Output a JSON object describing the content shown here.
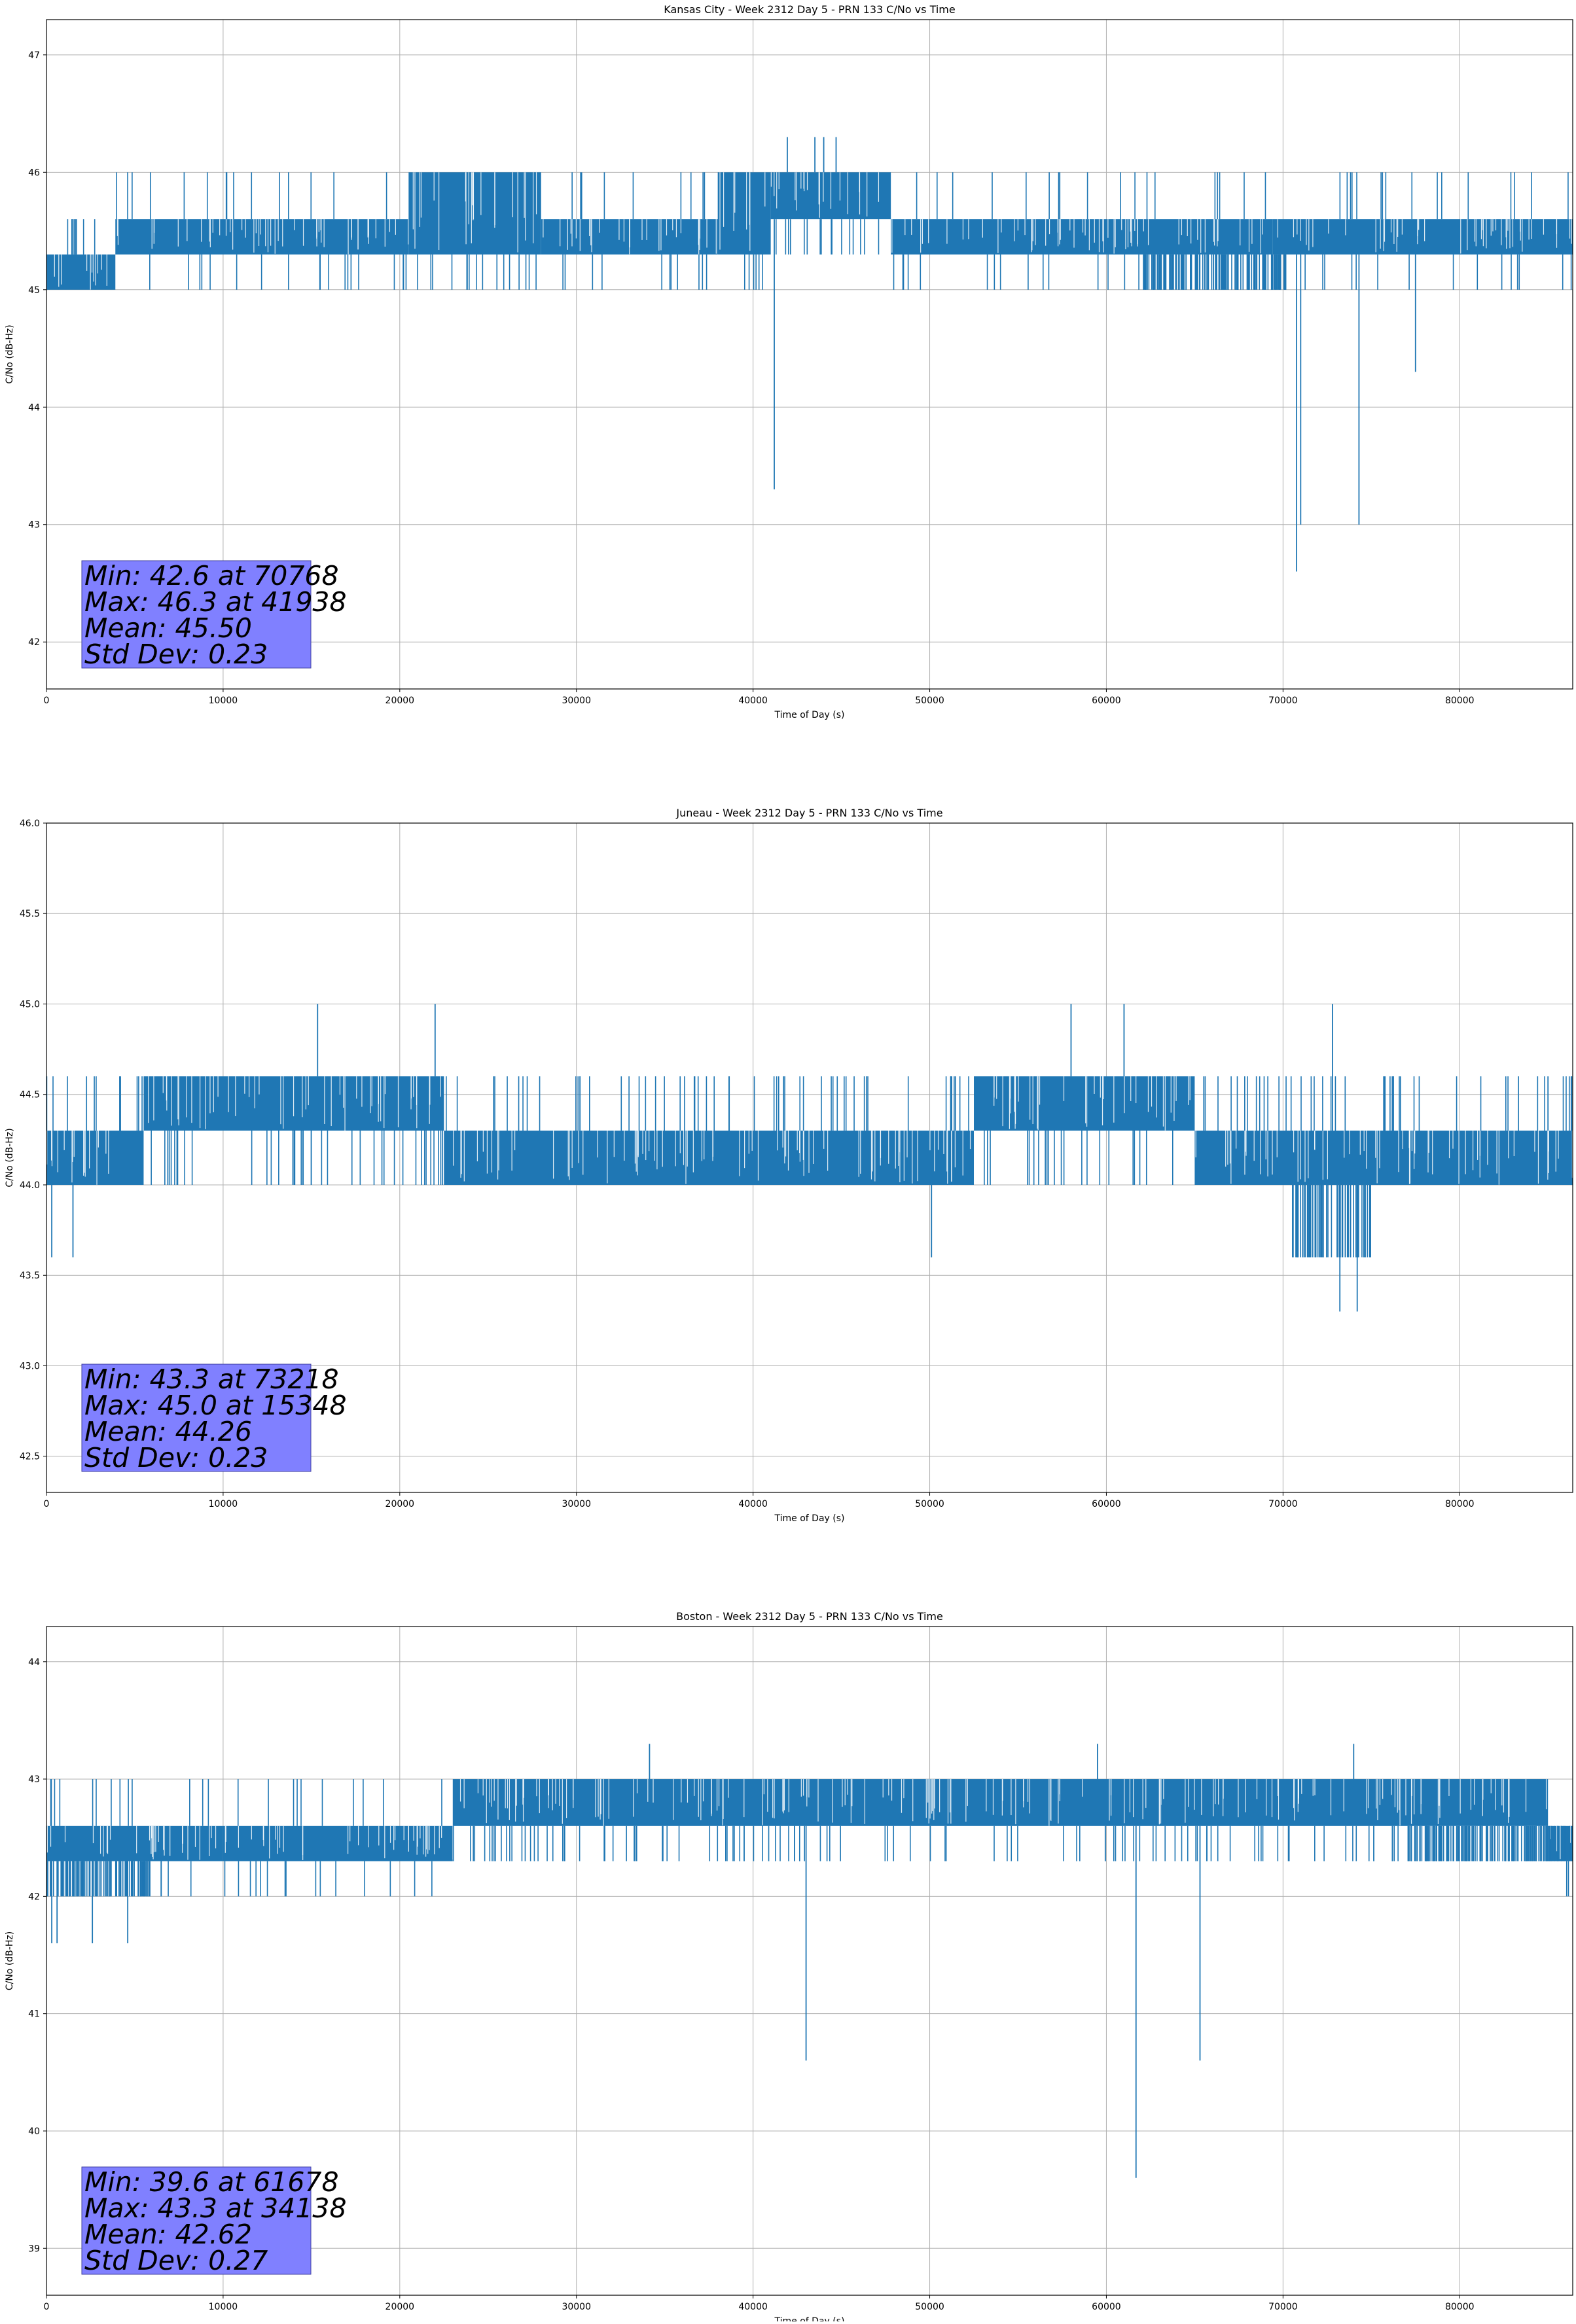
{
  "chart_data": [
    {
      "type": "line",
      "title": "Kansas City - Week 2312 Day 5 - PRN 133 C/No vs Time",
      "xlabel": "Time of Day (s)",
      "ylabel": "C/No (dB-Hz)",
      "xlim": [
        0,
        86400
      ],
      "ylim": [
        41.6,
        47.3
      ],
      "xticks": [
        0,
        10000,
        20000,
        30000,
        40000,
        50000,
        60000,
        70000,
        80000
      ],
      "yticks": [
        42,
        43,
        44,
        45,
        46,
        47
      ],
      "grid": true,
      "color": "#1f77b4",
      "levels": [
        45.0,
        45.3,
        45.6,
        46.0
      ],
      "segments": [
        {
          "x0": 0,
          "x1": 3900,
          "lo": 45.0,
          "hi": 45.3
        },
        {
          "x0": 3900,
          "x1": 20500,
          "lo": 45.3,
          "hi": 45.6
        },
        {
          "x0": 20500,
          "x1": 28000,
          "lo": 45.3,
          "hi": 46.0
        },
        {
          "x0": 28000,
          "x1": 38000,
          "lo": 45.3,
          "hi": 45.6
        },
        {
          "x0": 38000,
          "x1": 41000,
          "lo": 45.3,
          "hi": 46.0
        },
        {
          "x0": 41000,
          "x1": 47800,
          "lo": 45.6,
          "hi": 46.0
        },
        {
          "x0": 47800,
          "x1": 69400,
          "lo": 45.3,
          "hi": 45.6
        },
        {
          "x0": 69400,
          "x1": 86400,
          "lo": 45.3,
          "hi": 45.6
        }
      ],
      "bands": [
        {
          "x0": 62000,
          "x1": 70300,
          "lo": 45.0,
          "hi": 45.3
        }
      ],
      "spikes": [
        {
          "x": 41200,
          "y": 43.3
        },
        {
          "x": 41938,
          "y": 46.3
        },
        {
          "x": 43500,
          "y": 46.3
        },
        {
          "x": 44000,
          "y": 46.3
        },
        {
          "x": 44700,
          "y": 46.3
        },
        {
          "x": 70768,
          "y": 42.6
        },
        {
          "x": 71000,
          "y": 43.0
        },
        {
          "x": 74300,
          "y": 43.0
        },
        {
          "x": 77500,
          "y": 44.3
        }
      ],
      "stats": [
        "Min: 42.6 at 70768",
        "Max: 46.3 at 41938",
        "Mean: 45.50",
        "Std Dev: 0.23"
      ]
    },
    {
      "type": "line",
      "title": "Juneau - Week 2312 Day 5 - PRN 133 C/No vs Time",
      "xlabel": "Time of Day (s)",
      "ylabel": "C/No (dB-Hz)",
      "xlim": [
        0,
        86400
      ],
      "ylim": [
        42.3,
        46.0
      ],
      "xticks": [
        0,
        10000,
        20000,
        30000,
        40000,
        50000,
        60000,
        70000,
        80000
      ],
      "yticks": [
        42.5,
        43.0,
        43.5,
        44.0,
        44.5,
        45.0,
        45.5,
        46.0
      ],
      "grid": true,
      "color": "#1f77b4",
      "levels": [
        44.0,
        44.3,
        44.6
      ],
      "segments": [
        {
          "x0": 0,
          "x1": 5500,
          "lo": 44.0,
          "hi": 44.3
        },
        {
          "x0": 5500,
          "x1": 22500,
          "lo": 44.3,
          "hi": 44.6
        },
        {
          "x0": 22500,
          "x1": 52500,
          "lo": 44.0,
          "hi": 44.3
        },
        {
          "x0": 52500,
          "x1": 65000,
          "lo": 44.3,
          "hi": 44.6
        },
        {
          "x0": 65000,
          "x1": 86400,
          "lo": 44.0,
          "hi": 44.3
        }
      ],
      "bands": [
        {
          "x0": 70500,
          "x1": 75000,
          "lo": 43.6,
          "hi": 44.0
        }
      ],
      "spikes": [
        {
          "x": 300,
          "y": 43.6
        },
        {
          "x": 1500,
          "y": 43.6
        },
        {
          "x": 15348,
          "y": 45.0
        },
        {
          "x": 22000,
          "y": 45.0
        },
        {
          "x": 50100,
          "y": 43.6
        },
        {
          "x": 58000,
          "y": 45.0
        },
        {
          "x": 61000,
          "y": 45.0
        },
        {
          "x": 72800,
          "y": 45.0
        },
        {
          "x": 73218,
          "y": 43.3
        },
        {
          "x": 74200,
          "y": 43.3
        },
        {
          "x": 85000,
          "y": 44.6
        }
      ],
      "stats": [
        "Min: 43.3 at 73218",
        "Max: 45.0 at 15348",
        "Mean: 44.26",
        "Std Dev: 0.23"
      ]
    },
    {
      "type": "line",
      "title": "Boston - Week 2312 Day 5 - PRN 133 C/No vs Time",
      "xlabel": "Time of Day (s)",
      "ylabel": "C/No (dB-Hz)",
      "xlim": [
        0,
        86400
      ],
      "ylim": [
        38.6,
        44.3
      ],
      "xticks": [
        0,
        10000,
        20000,
        30000,
        40000,
        50000,
        60000,
        70000,
        80000
      ],
      "yticks": [
        39,
        40,
        41,
        42,
        43,
        44
      ],
      "grid": true,
      "color": "#1f77b4",
      "levels": [
        42.0,
        42.3,
        42.6,
        43.0
      ],
      "segments": [
        {
          "x0": 0,
          "x1": 10000,
          "lo": 42.3,
          "hi": 42.6
        },
        {
          "x0": 10000,
          "x1": 23000,
          "lo": 42.3,
          "hi": 42.6
        },
        {
          "x0": 23000,
          "x1": 85000,
          "lo": 42.6,
          "hi": 43.0
        },
        {
          "x0": 85000,
          "x1": 86400,
          "lo": 42.3,
          "hi": 42.6
        }
      ],
      "bands": [
        {
          "x0": 0,
          "x1": 6000,
          "lo": 42.0,
          "hi": 42.3
        },
        {
          "x0": 77000,
          "x1": 86400,
          "lo": 42.3,
          "hi": 42.6
        }
      ],
      "spikes": [
        {
          "x": 300,
          "y": 41.6
        },
        {
          "x": 600,
          "y": 41.6
        },
        {
          "x": 2600,
          "y": 41.6
        },
        {
          "x": 4600,
          "y": 41.6
        },
        {
          "x": 34138,
          "y": 43.3
        },
        {
          "x": 43000,
          "y": 40.6
        },
        {
          "x": 59500,
          "y": 43.3
        },
        {
          "x": 61678,
          "y": 39.6
        },
        {
          "x": 65300,
          "y": 40.6
        },
        {
          "x": 74000,
          "y": 43.3
        }
      ],
      "stats": [
        "Min: 39.6 at 61678",
        "Max: 43.3 at 34138",
        "Mean: 42.62",
        "Std Dev: 0.27"
      ]
    }
  ]
}
